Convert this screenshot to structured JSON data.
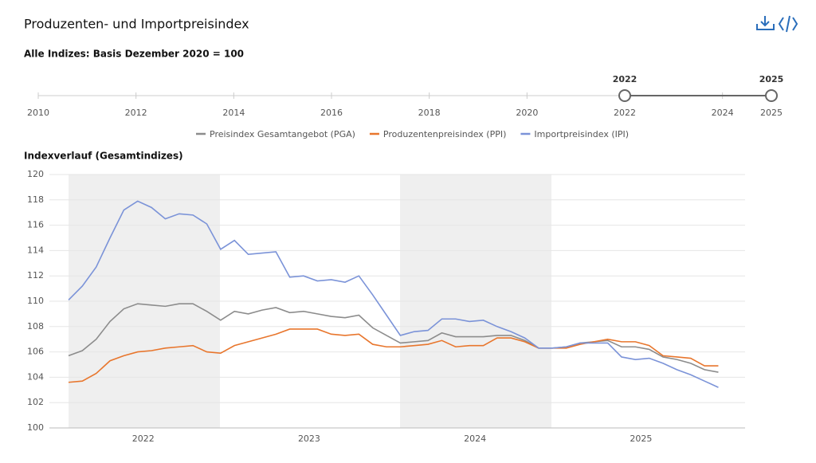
{
  "header": {
    "title": "Produzenten- und Importpreisindex",
    "subtitle": "Alle Indizes: Basis Dezember 2020 = 100"
  },
  "range_slider": {
    "xlim": [
      2010,
      2025
    ],
    "xticks": [
      2010,
      2012,
      2014,
      2016,
      2018,
      2020,
      2022,
      2024,
      2025
    ],
    "selection": [
      2022,
      2025
    ]
  },
  "chart_data": {
    "type": "line",
    "title": "Indexverlauf (Gesamtindizes)",
    "categories": [
      null,
      null,
      null,
      null,
      null,
      "2022",
      null,
      null,
      null,
      null,
      null,
      null,
      null,
      null,
      null,
      null,
      null,
      "2023",
      null,
      null,
      null,
      null,
      null,
      null,
      null,
      null,
      null,
      null,
      null,
      "2024",
      null,
      null,
      null,
      null,
      null,
      null,
      null,
      null,
      null,
      null,
      null,
      "2025",
      null,
      null,
      null,
      null,
      null,
      null
    ],
    "ylim": [
      100,
      120
    ],
    "yticks": [
      100,
      102,
      104,
      106,
      108,
      110,
      112,
      114,
      116,
      118,
      120
    ],
    "grid": true,
    "series": [
      {
        "name": "Preisindex Gesamtangebot (PGA)",
        "color": "#8c8c8c",
        "values": [
          105.7,
          106.1,
          107.0,
          108.4,
          109.4,
          109.8,
          109.7,
          109.6,
          109.8,
          109.8,
          109.2,
          108.5,
          109.2,
          109.0,
          109.3,
          109.5,
          109.1,
          109.2,
          109.0,
          108.8,
          108.7,
          108.9,
          107.9,
          107.3,
          106.7,
          106.8,
          106.9,
          107.5,
          107.2,
          107.2,
          107.2,
          107.3,
          107.3,
          106.9,
          106.3,
          106.3,
          106.4,
          106.7,
          106.8,
          106.9,
          106.4,
          106.4,
          106.2,
          105.6,
          105.4,
          105.1,
          104.6,
          104.4
        ]
      },
      {
        "name": "Produzentenpreisindex (PPI)",
        "color": "#e8762d",
        "values": [
          103.6,
          103.7,
          104.3,
          105.3,
          105.7,
          106.0,
          106.1,
          106.3,
          106.4,
          106.5,
          106.0,
          105.9,
          106.5,
          106.8,
          107.1,
          107.4,
          107.8,
          107.8,
          107.8,
          107.4,
          107.3,
          107.4,
          106.6,
          106.4,
          106.4,
          106.5,
          106.6,
          106.9,
          106.4,
          106.5,
          106.5,
          107.1,
          107.1,
          106.8,
          106.3,
          106.3,
          106.3,
          106.6,
          106.8,
          107.0,
          106.8,
          106.8,
          106.5,
          105.7,
          105.6,
          105.5,
          104.9,
          104.9
        ]
      },
      {
        "name": "Importpreisindex (IPI)",
        "color": "#7b93d8",
        "values": [
          110.1,
          111.2,
          112.7,
          115.0,
          117.2,
          117.9,
          117.4,
          116.5,
          116.9,
          116.8,
          116.1,
          114.1,
          114.8,
          113.7,
          113.8,
          113.9,
          111.9,
          112.0,
          111.6,
          111.7,
          111.5,
          112.0,
          110.5,
          108.9,
          107.3,
          107.6,
          107.7,
          108.6,
          108.6,
          108.4,
          108.5,
          108.0,
          107.6,
          107.1,
          106.3,
          106.3,
          106.4,
          106.7,
          106.7,
          106.7,
          105.6,
          105.4,
          105.5,
          105.1,
          104.6,
          104.2,
          103.7,
          103.2
        ]
      }
    ]
  }
}
